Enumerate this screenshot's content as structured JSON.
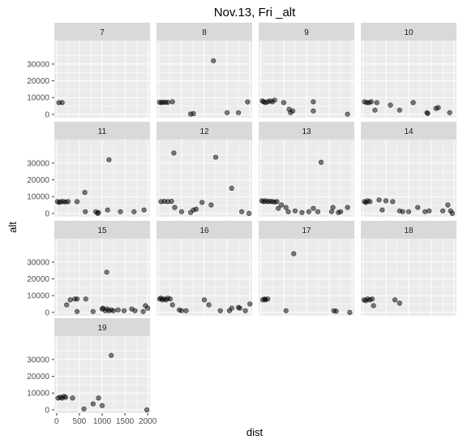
{
  "chart_data": {
    "type": "scatter",
    "title": "Nov.13, Fri _alt",
    "xlabel": "dist",
    "ylabel": "alt",
    "xlim": [
      -50,
      2050
    ],
    "ylim": [
      -2000,
      44000
    ],
    "x_ticks": [
      0,
      500,
      1000,
      1500,
      2000
    ],
    "y_ticks": [
      0,
      10000,
      20000,
      30000
    ],
    "grid": true,
    "colors": {
      "panel_bg": "#ebebeb",
      "strip_bg": "#d9d9d9",
      "grid": "#ffffff",
      "point": "#000000"
    },
    "facets": [
      {
        "label": "7",
        "points": [
          [
            50,
            7000
          ],
          [
            120,
            7000
          ]
        ]
      },
      {
        "label": "8",
        "points": [
          [
            20,
            7200
          ],
          [
            60,
            7000
          ],
          [
            100,
            7300
          ],
          [
            150,
            7100
          ],
          [
            200,
            7200
          ],
          [
            300,
            7500
          ],
          [
            700,
            200
          ],
          [
            760,
            400
          ],
          [
            1200,
            32000
          ],
          [
            1500,
            1000
          ],
          [
            1750,
            1000
          ],
          [
            1950,
            7400
          ]
        ]
      },
      {
        "label": "9",
        "points": [
          [
            30,
            8000
          ],
          [
            60,
            7500
          ],
          [
            100,
            7000
          ],
          [
            150,
            7500
          ],
          [
            200,
            8000
          ],
          [
            250,
            7500
          ],
          [
            300,
            8500
          ],
          [
            500,
            7000
          ],
          [
            620,
            3000
          ],
          [
            650,
            1000
          ],
          [
            700,
            2000
          ],
          [
            1150,
            7500
          ],
          [
            1150,
            2000
          ],
          [
            1900,
            100
          ]
        ]
      },
      {
        "label": "10",
        "points": [
          [
            30,
            7500
          ],
          [
            80,
            7000
          ],
          [
            130,
            7000
          ],
          [
            180,
            7500
          ],
          [
            260,
            2500
          ],
          [
            300,
            7000
          ],
          [
            600,
            5500
          ],
          [
            800,
            2500
          ],
          [
            1100,
            7000
          ],
          [
            1400,
            1000
          ],
          [
            1420,
            500
          ],
          [
            1600,
            3500
          ],
          [
            1650,
            4000
          ],
          [
            1900,
            1000
          ]
        ]
      },
      {
        "label": "11",
        "points": [
          [
            20,
            7000
          ],
          [
            60,
            6500
          ],
          [
            100,
            7000
          ],
          [
            150,
            7000
          ],
          [
            200,
            6800
          ],
          [
            250,
            7000
          ],
          [
            450,
            7000
          ],
          [
            620,
            12500
          ],
          [
            630,
            1000
          ],
          [
            860,
            1000
          ],
          [
            900,
            0
          ],
          [
            920,
            500
          ],
          [
            1120,
            2000
          ],
          [
            1150,
            32000
          ],
          [
            1400,
            1000
          ],
          [
            1700,
            1000
          ],
          [
            1920,
            2000
          ]
        ]
      },
      {
        "label": "12",
        "points": [
          [
            50,
            7000
          ],
          [
            120,
            7200
          ],
          [
            200,
            7000
          ],
          [
            280,
            7200
          ],
          [
            330,
            36000
          ],
          [
            350,
            3500
          ],
          [
            500,
            1000
          ],
          [
            700,
            500
          ],
          [
            760,
            2000
          ],
          [
            820,
            2500
          ],
          [
            950,
            6500
          ],
          [
            1150,
            5000
          ],
          [
            1250,
            33500
          ],
          [
            1600,
            15000
          ],
          [
            1820,
            1000
          ],
          [
            1980,
            0
          ]
        ]
      },
      {
        "label": "13",
        "points": [
          [
            20,
            7500
          ],
          [
            60,
            7000
          ],
          [
            100,
            7500
          ],
          [
            150,
            7000
          ],
          [
            200,
            7200
          ],
          [
            250,
            7000
          ],
          [
            300,
            6800
          ],
          [
            350,
            7000
          ],
          [
            380,
            3000
          ],
          [
            450,
            5000
          ],
          [
            550,
            3500
          ],
          [
            600,
            1000
          ],
          [
            750,
            1500
          ],
          [
            900,
            500
          ],
          [
            1050,
            1000
          ],
          [
            1150,
            3000
          ],
          [
            1250,
            1000
          ],
          [
            1320,
            30500
          ],
          [
            1550,
            1000
          ],
          [
            1580,
            3500
          ],
          [
            1700,
            500
          ],
          [
            1750,
            1000
          ],
          [
            1900,
            3500
          ]
        ]
      },
      {
        "label": "14",
        "points": [
          [
            30,
            7000
          ],
          [
            60,
            6500
          ],
          [
            100,
            7500
          ],
          [
            150,
            7000
          ],
          [
            350,
            8000
          ],
          [
            420,
            2000
          ],
          [
            500,
            7500
          ],
          [
            650,
            7000
          ],
          [
            800,
            1500
          ],
          [
            870,
            1000
          ],
          [
            1000,
            1000
          ],
          [
            1200,
            3500
          ],
          [
            1360,
            1000
          ],
          [
            1450,
            1500
          ],
          [
            1750,
            1500
          ],
          [
            1860,
            5000
          ],
          [
            1920,
            1500
          ],
          [
            1960,
            0
          ]
        ]
      },
      {
        "label": "15",
        "points": [
          [
            220,
            4500
          ],
          [
            300,
            7500
          ],
          [
            400,
            8000
          ],
          [
            450,
            500
          ],
          [
            450,
            8000
          ],
          [
            640,
            8000
          ],
          [
            800,
            500
          ],
          [
            1000,
            2000
          ],
          [
            1020,
            2500
          ],
          [
            1070,
            1000
          ],
          [
            1100,
            24000
          ],
          [
            1110,
            2000
          ],
          [
            1150,
            1000
          ],
          [
            1200,
            1500
          ],
          [
            1250,
            1000
          ],
          [
            1350,
            1500
          ],
          [
            1480,
            1000
          ],
          [
            1650,
            2000
          ],
          [
            1720,
            1000
          ],
          [
            1900,
            500
          ],
          [
            1950,
            4000
          ],
          [
            2000,
            2500
          ]
        ]
      },
      {
        "label": "16",
        "points": [
          [
            20,
            8000
          ],
          [
            50,
            8500
          ],
          [
            80,
            7500
          ],
          [
            120,
            8000
          ],
          [
            160,
            7500
          ],
          [
            200,
            8500
          ],
          [
            250,
            8000
          ],
          [
            300,
            4500
          ],
          [
            450,
            1500
          ],
          [
            500,
            1000
          ],
          [
            600,
            1000
          ],
          [
            1000,
            7500
          ],
          [
            1100,
            4500
          ],
          [
            1350,
            1000
          ],
          [
            1550,
            1000
          ],
          [
            1600,
            2500
          ],
          [
            1750,
            3000
          ],
          [
            1780,
            2500
          ],
          [
            1900,
            1000
          ],
          [
            2000,
            5000
          ]
        ]
      },
      {
        "label": "17",
        "points": [
          [
            40,
            7500
          ],
          [
            80,
            8000
          ],
          [
            100,
            7500
          ],
          [
            150,
            8000
          ],
          [
            550,
            1000
          ],
          [
            720,
            35000
          ],
          [
            1600,
            1000
          ],
          [
            1650,
            700
          ],
          [
            1950,
            0
          ]
        ]
      },
      {
        "label": "18",
        "points": [
          [
            20,
            7500
          ],
          [
            60,
            7000
          ],
          [
            100,
            8000
          ],
          [
            150,
            7500
          ],
          [
            200,
            8000
          ],
          [
            230,
            4000
          ],
          [
            700,
            7500
          ],
          [
            800,
            5500
          ]
        ]
      },
      {
        "label": "19",
        "points": [
          [
            30,
            7000
          ],
          [
            80,
            7500
          ],
          [
            120,
            7000
          ],
          [
            160,
            8000
          ],
          [
            200,
            7500
          ],
          [
            350,
            7000
          ],
          [
            600,
            500
          ],
          [
            800,
            3500
          ],
          [
            920,
            7000
          ],
          [
            1000,
            2500
          ],
          [
            1200,
            32500
          ],
          [
            1980,
            0
          ]
        ]
      }
    ]
  }
}
